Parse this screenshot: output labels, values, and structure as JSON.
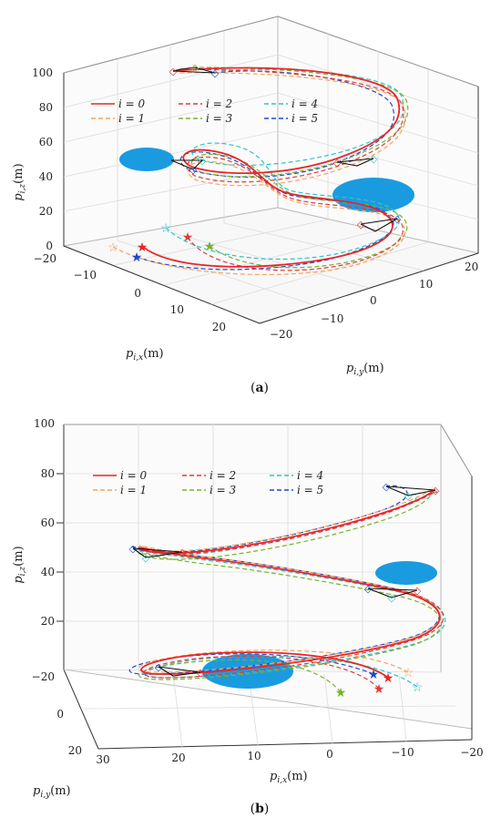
{
  "chart_data": [
    {
      "type": "line",
      "subplot_label": "a",
      "xlabel": "p_{i,x}(m)",
      "ylabel": "p_{i,y}(m)",
      "zlabel": "p_{i,z}(m)",
      "x_ticks": [
        "−20",
        "−10",
        "0",
        "10",
        "20"
      ],
      "y_ticks": [
        "−20",
        "−10",
        "0",
        "10",
        "20"
      ],
      "z_ticks": [
        "0",
        "20",
        "40",
        "60",
        "80",
        "100"
      ],
      "legend": [
        "i = 0",
        "i = 1",
        "i = 2",
        "i = 3",
        "i = 4",
        "i = 5"
      ],
      "legend_placement": "upper-left inside",
      "grid": true
    },
    {
      "type": "line",
      "subplot_label": "b",
      "xlabel": "p_{i,x}(m)",
      "ylabel": "p_{i,y}(m)",
      "zlabel": "p_{i,z}(m)",
      "x_ticks": [
        "30",
        "20",
        "10",
        "0",
        "−10",
        "−20"
      ],
      "y_ticks": [
        "−20",
        "0",
        "20"
      ],
      "z_ticks": [
        "20",
        "40",
        "60",
        "80",
        "100"
      ],
      "legend": [
        "i = 0",
        "i = 1",
        "i = 2",
        "i = 3",
        "i = 4",
        "i = 5"
      ],
      "legend_placement": "upper-left inside",
      "grid": true
    }
  ],
  "series_styles": [
    {
      "color": "#e8262b",
      "dash": "solid"
    },
    {
      "color": "#f5a35c",
      "dash": "dashed"
    },
    {
      "color": "#e23b3b",
      "dash": "dashed"
    },
    {
      "color": "#78b12c",
      "dash": "dashed"
    },
    {
      "color": "#2fc4c6",
      "dash": "dashed"
    },
    {
      "color": "#1f49c8",
      "dash": "dashed"
    }
  ],
  "obstacle_color": "#1a9be0",
  "captions": {
    "a": "(a)",
    "b": "(b)"
  },
  "axis_text": {
    "xlabel_main": "p",
    "xlabel_sub": "i,x",
    "xlabel_unit": "(m)",
    "ylabel_main": "p",
    "ylabel_sub": "i,y",
    "ylabel_unit": "(m)",
    "zlabel_main": "p",
    "zlabel_sub": "i,z",
    "zlabel_unit": "(m)"
  }
}
